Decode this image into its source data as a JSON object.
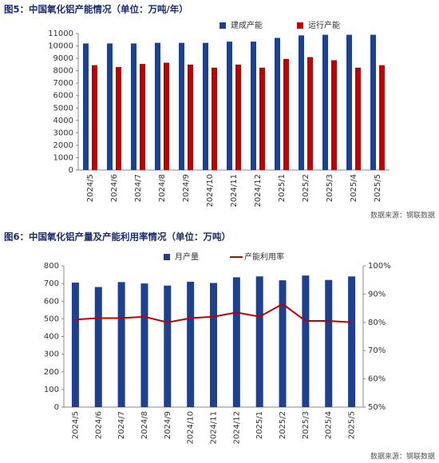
{
  "chart_data": [
    {
      "type": "bar",
      "title": "图5：中国氧化铝产能情况（单位：万吨/年）",
      "source": "数据来源：钢联数据",
      "categories": [
        "2024/5",
        "2024/6",
        "2024/7",
        "2024/8",
        "2024/9",
        "2024/10",
        "2024/11",
        "2024/12",
        "2025/1",
        "2025/2",
        "2025/3",
        "2025/4",
        "2025/5"
      ],
      "series": [
        {
          "name": "建成产能",
          "color": "#1f3f8f",
          "values": [
            10200,
            10200,
            10200,
            10250,
            10250,
            10250,
            10350,
            10350,
            10650,
            10850,
            10900,
            10900,
            10900
          ]
        },
        {
          "name": "运行产能",
          "color": "#c00000",
          "values": [
            8450,
            8300,
            8550,
            8650,
            8500,
            8250,
            8500,
            8250,
            8950,
            9100,
            8850,
            8250,
            8450
          ]
        }
      ],
      "ylim": [
        0,
        11000
      ],
      "yticks": [
        0,
        1000,
        2000,
        3000,
        4000,
        5000,
        6000,
        7000,
        8000,
        9000,
        10000,
        11000
      ]
    },
    {
      "type": "combo",
      "title": "图6：中国氧化铝产量及产能利用率情况（单位：万吨）",
      "source": "数据来源：钢联数据",
      "categories": [
        "2024/5",
        "2024/6",
        "2024/7",
        "2024/8",
        "2024/9",
        "2024/10",
        "2024/11",
        "2024/12",
        "2025/1",
        "2025/2",
        "2025/3",
        "2025/4",
        "2025/5"
      ],
      "series": [
        {
          "name": "月产量",
          "type": "bar",
          "color": "#1f3f8f",
          "values": [
            705,
            680,
            708,
            700,
            688,
            710,
            703,
            735,
            740,
            718,
            745,
            720,
            740
          ]
        },
        {
          "name": "产能利用率",
          "type": "line",
          "axis": "y2",
          "color": "#c00000",
          "values": [
            81,
            81.5,
            81.5,
            82,
            80,
            81.5,
            82,
            83.5,
            82,
            86.5,
            80.5,
            80.5,
            80
          ]
        }
      ],
      "ylim": [
        0,
        800
      ],
      "yticks": [
        0,
        100,
        200,
        300,
        400,
        500,
        600,
        700,
        800
      ],
      "y2lim": [
        50,
        100
      ],
      "y2ticks": [
        {
          "value": 50,
          "label": "50%"
        },
        {
          "value": 60,
          "label": "60%"
        },
        {
          "value": 70,
          "label": "70%"
        },
        {
          "value": 80,
          "label": "80%"
        },
        {
          "value": 90,
          "label": "90%"
        },
        {
          "value": 100,
          "label": "100%"
        }
      ]
    }
  ]
}
